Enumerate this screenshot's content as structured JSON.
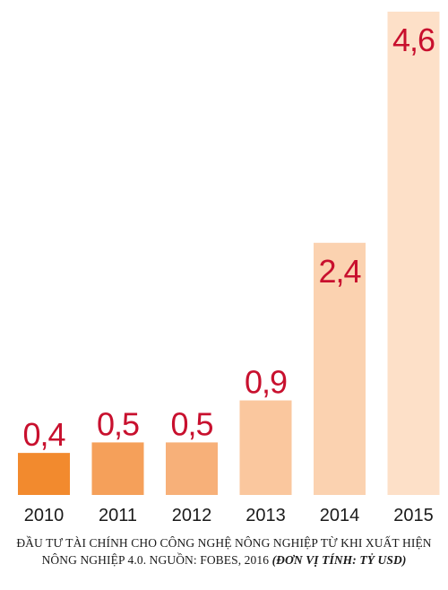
{
  "chart_data": {
    "type": "bar",
    "categories": [
      "2010",
      "2011",
      "2012",
      "2013",
      "2014",
      "2015"
    ],
    "values": [
      0.4,
      0.5,
      0.5,
      0.9,
      2.4,
      4.6
    ],
    "value_labels": [
      "0,4",
      "0,5",
      "0,5",
      "0,9",
      "2,4",
      "4,6"
    ],
    "bar_colors": [
      "#f28a2e",
      "#f5a05a",
      "#f7b079",
      "#fac79e",
      "#fbd2b0",
      "#fde0c8"
    ],
    "label_color": "#c8102e",
    "ylim": [
      0,
      4.6
    ],
    "grid": false,
    "legend": "none"
  },
  "caption": {
    "line1": "ĐẦU TƯ TÀI CHÍNH CHO CÔNG NGHỆ NÔNG NGHIỆP TỪ KHI XUẤT HIỆN",
    "line2": "NÔNG NGHIỆP 4.0. NGUỒN: FOBES, 2016",
    "unit": "(ĐƠN VỊ TÍNH: TỶ USD)"
  }
}
